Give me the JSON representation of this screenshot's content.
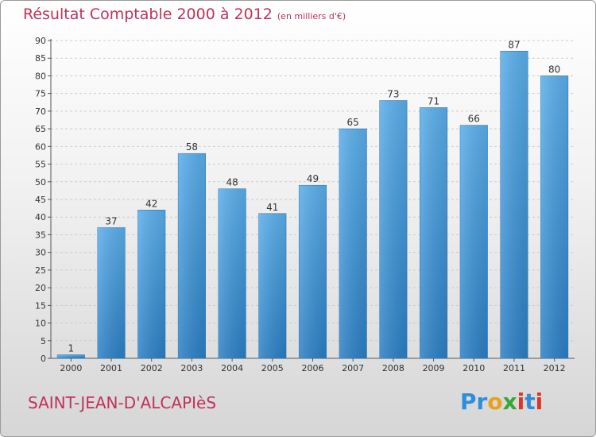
{
  "header": {
    "title": "Résultat Comptable 2000 à 2012",
    "subtitle": "(en milliers d'€)"
  },
  "footer": {
    "commune": "SAINT-JEAN-D'ALCAPIèS",
    "logo_text": "Proxiti"
  },
  "colors": {
    "bar": "#4a9fe0",
    "title": "#c0325a"
  },
  "chart_data": {
    "type": "bar",
    "title": "Résultat Comptable 2000 à 2012",
    "subtitle": "(en milliers d'€)",
    "categories": [
      "2000",
      "2001",
      "2002",
      "2003",
      "2004",
      "2005",
      "2006",
      "2007",
      "2008",
      "2009",
      "2010",
      "2011",
      "2012"
    ],
    "values": [
      1,
      37,
      42,
      58,
      48,
      41,
      49,
      65,
      73,
      71,
      66,
      87,
      80
    ],
    "ylim": [
      0,
      90
    ],
    "yticks": [
      0,
      5,
      10,
      15,
      20,
      25,
      30,
      35,
      40,
      45,
      50,
      55,
      60,
      65,
      70,
      75,
      80,
      85,
      90
    ],
    "grid": true,
    "data_labels": true
  }
}
